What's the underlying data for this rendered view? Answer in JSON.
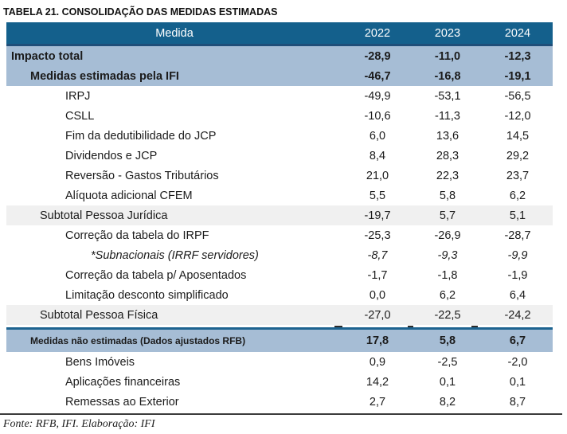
{
  "title": "TABELA 21. CONSOLIDAÇÃO DAS MEDIDAS ESTIMADAS",
  "footer": "Fonte: RFB, IFI. Elaboração: IFI",
  "colors": {
    "header_bg": "#14608C",
    "header_border": "#1F4E79",
    "highlight_row_bg": "#A6BDD5",
    "subtotal_row_bg": "#F0F0F0",
    "divider_blue": "#1D6390"
  },
  "table": {
    "columns": [
      "Medida",
      "2022",
      "2023",
      "2024"
    ],
    "rows": [
      {
        "label": "Impacto total",
        "values": [
          "-28,9",
          "-11,0",
          "-12,3"
        ],
        "style": "total",
        "indent": 0
      },
      {
        "label": "Medidas estimadas pela IFI",
        "values": [
          "-46,7",
          "-16,8",
          "-19,1"
        ],
        "style": "total",
        "indent": 1
      },
      {
        "label": "IRPJ",
        "values": [
          "-49,9",
          "-53,1",
          "-56,5"
        ],
        "style": "item",
        "indent": 2
      },
      {
        "label": "CSLL",
        "values": [
          "-10,6",
          "-11,3",
          "-12,0"
        ],
        "style": "item",
        "indent": 2
      },
      {
        "label": "Fim da dedutibilidade do JCP",
        "values": [
          "6,0",
          "13,6",
          "14,5"
        ],
        "style": "item",
        "indent": 2
      },
      {
        "label": "Dividendos e JCP",
        "values": [
          "8,4",
          "28,3",
          "29,2"
        ],
        "style": "item",
        "indent": 2
      },
      {
        "label": "Reversão - Gastos Tributários",
        "values": [
          "21,0",
          "22,3",
          "23,7"
        ],
        "style": "item",
        "indent": 2
      },
      {
        "label": "Alíquota adicional CFEM",
        "values": [
          "5,5",
          "5,8",
          "6,2"
        ],
        "style": "item",
        "indent": 2
      },
      {
        "label": "Subtotal Pessoa Jurídica",
        "values": [
          "-19,7",
          "5,7",
          "5,1"
        ],
        "style": "subtotal",
        "indent": 1.5
      },
      {
        "label": "Correção da tabela do IRPF",
        "values": [
          "-25,3",
          "-26,9",
          "-28,7"
        ],
        "style": "item",
        "indent": 2
      },
      {
        "label": "*Subnacionais (IRRF servidores)",
        "values": [
          "-8,7",
          "-9,3",
          "-9,9"
        ],
        "style": "item italic",
        "indent": 3
      },
      {
        "label": "Correção da tabela p/ Aposentados",
        "values": [
          "-1,7",
          "-1,8",
          "-1,9"
        ],
        "style": "item",
        "indent": 2
      },
      {
        "label": "Limitação desconto simplificado",
        "values": [
          "0,0",
          "6,2",
          "6,4"
        ],
        "style": "item",
        "indent": 2
      },
      {
        "label": "Subtotal Pessoa Física",
        "values": [
          "-27,0",
          "-22,5",
          "-24,2"
        ],
        "style": "subtotal",
        "indent": 1.5
      },
      {
        "style": "divider"
      },
      {
        "label": "Medidas não estimadas (Dados ajustados RFB)",
        "values": [
          "17,8",
          "5,8",
          "6,7"
        ],
        "style": "section",
        "indent": 1
      },
      {
        "label": "Bens Imóveis",
        "values": [
          "0,9",
          "-2,5",
          "-2,0"
        ],
        "style": "item",
        "indent": 2
      },
      {
        "label": "Aplicações financeiras",
        "values": [
          "14,2",
          "0,1",
          "0,1"
        ],
        "style": "item",
        "indent": 2
      },
      {
        "label": "Remessas ao Exterior",
        "values": [
          "2,7",
          "8,2",
          "8,7"
        ],
        "style": "item",
        "indent": 2
      }
    ]
  }
}
